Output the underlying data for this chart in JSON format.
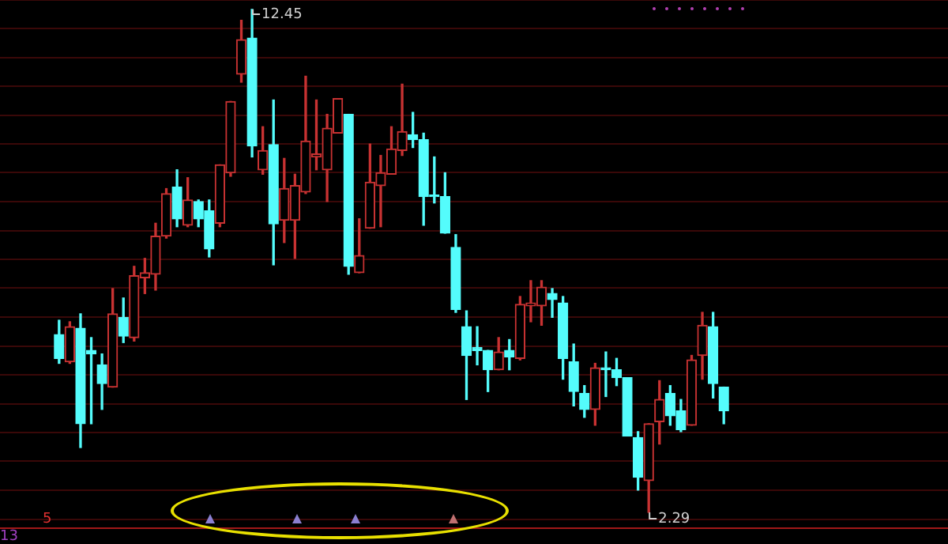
{
  "chart_data": {
    "type": "candlestick",
    "grid": true,
    "categories": [
      null,
      null,
      null,
      null,
      null,
      null,
      null,
      null,
      null,
      null,
      null,
      null,
      null,
      null,
      null,
      null,
      null,
      null,
      null,
      null,
      null,
      null,
      null,
      null,
      null,
      null,
      null,
      null,
      null,
      null,
      null,
      null,
      null,
      null,
      null,
      null,
      null,
      null,
      null,
      null,
      null,
      null,
      null,
      null,
      null,
      null,
      null,
      null,
      null,
      null,
      null,
      null,
      null,
      null,
      null,
      null,
      null,
      null,
      null,
      null,
      null,
      null,
      null
    ],
    "ohlc": [
      [
        5.88,
        6.17,
        5.3,
        5.4
      ],
      [
        5.33,
        6.14,
        5.3,
        6.04
      ],
      [
        6.01,
        6.3,
        3.6,
        4.08
      ],
      [
        5.56,
        5.82,
        4.08,
        5.49
      ],
      [
        5.27,
        5.49,
        4.37,
        4.89
      ],
      [
        4.82,
        6.81,
        4.82,
        6.3
      ],
      [
        6.23,
        6.62,
        5.72,
        5.85
      ],
      [
        5.82,
        7.26,
        5.75,
        7.07
      ],
      [
        7.03,
        7.42,
        6.71,
        7.13
      ],
      [
        7.1,
        8.13,
        6.78,
        7.87
      ],
      [
        7.87,
        8.83,
        7.83,
        8.73
      ],
      [
        8.86,
        9.21,
        8.06,
        8.22
      ],
      [
        8.09,
        9.05,
        8.06,
        8.6
      ],
      [
        8.57,
        8.6,
        8.06,
        8.22
      ],
      [
        8.38,
        8.6,
        7.45,
        7.61
      ],
      [
        8.13,
        9.31,
        8.06,
        9.31
      ],
      [
        9.15,
        10.59,
        9.08,
        10.59
      ],
      [
        11.14,
        12.23,
        10.98,
        11.84
      ],
      [
        11.87,
        12.45,
        9.47,
        9.69
      ],
      [
        9.21,
        10.08,
        9.12,
        9.6
      ],
      [
        9.72,
        10.62,
        7.29,
        8.12
      ],
      [
        8.19,
        9.44,
        7.74,
        8.83
      ],
      [
        8.19,
        9.12,
        7.42,
        8.89
      ],
      [
        8.76,
        11.1,
        8.73,
        9.79
      ],
      [
        9.47,
        10.62,
        9.21,
        9.53
      ],
      [
        9.21,
        10.33,
        8.57,
        10.05
      ],
      [
        9.95,
        10.65,
        9.95,
        10.65
      ],
      [
        10.33,
        10.33,
        7.1,
        7.26
      ],
      [
        7.13,
        8.22,
        7.13,
        7.48
      ],
      [
        8.03,
        9.73,
        8.03,
        8.96
      ],
      [
        8.89,
        9.5,
        8.06,
        9.15
      ],
      [
        9.12,
        10.08,
        9.12,
        9.63
      ],
      [
        9.6,
        10.94,
        9.5,
        9.98
      ],
      [
        9.92,
        10.37,
        9.66,
        9.82
      ],
      [
        9.82,
        9.95,
        8.09,
        8.67
      ],
      [
        8.7,
        9.47,
        8.54,
        8.67
      ],
      [
        8.67,
        9.15,
        7.93,
        7.93
      ],
      [
        7.64,
        7.9,
        6.33,
        6.39
      ],
      [
        6.04,
        6.36,
        4.57,
        5.46
      ],
      [
        5.62,
        6.04,
        5.27,
        5.56
      ],
      [
        5.56,
        5.56,
        4.73,
        5.17
      ],
      [
        5.17,
        5.82,
        5.17,
        5.53
      ],
      [
        5.56,
        5.78,
        5.17,
        5.43
      ],
      [
        5.4,
        6.65,
        5.37,
        6.49
      ],
      [
        6.46,
        6.97,
        6.14,
        6.52
      ],
      [
        6.46,
        6.97,
        6.07,
        6.84
      ],
      [
        6.71,
        6.81,
        6.23,
        6.59
      ],
      [
        6.52,
        6.65,
        4.98,
        5.4
      ],
      [
        5.33,
        5.69,
        4.44,
        4.73
      ],
      [
        4.69,
        4.85,
        4.21,
        4.37
      ],
      [
        4.37,
        5.3,
        4.05,
        5.21
      ],
      [
        5.21,
        5.53,
        4.63,
        5.17
      ],
      [
        5.17,
        5.4,
        4.85,
        5.01
      ],
      [
        5.01,
        5.01,
        3.83,
        3.83
      ],
      [
        3.8,
        3.92,
        2.74,
        3.0
      ],
      [
        2.93,
        4.08,
        2.29,
        4.08
      ],
      [
        4.12,
        4.95,
        3.67,
        4.57
      ],
      [
        4.69,
        4.85,
        4.05,
        4.24
      ],
      [
        4.34,
        4.57,
        3.92,
        3.96
      ],
      [
        4.05,
        5.46,
        4.05,
        5.37
      ],
      [
        5.46,
        6.33,
        4.98,
        6.07
      ],
      [
        6.04,
        6.33,
        4.6,
        4.89
      ],
      [
        4.82,
        4.82,
        4.08,
        4.34
      ]
    ],
    "colors": [
      "#54fcfc",
      "#c83232",
      "#54fcfc",
      "#54fcfc",
      "#54fcfc",
      "#c83232",
      "#54fcfc",
      "#c83232",
      "#c83232",
      "#c83232",
      "#c83232",
      "#54fcfc",
      "#c83232",
      "#54fcfc",
      "#54fcfc",
      "#c83232",
      "#c83232",
      "#c83232",
      "#54fcfc",
      "#c83232",
      "#54fcfc",
      "#c83232",
      "#c83232",
      "#c83232",
      "#c83232",
      "#c83232",
      "#c83232",
      "#54fcfc",
      "#c83232",
      "#c83232",
      "#c83232",
      "#c83232",
      "#c83232",
      "#54fcfc",
      "#54fcfc",
      "#54fcfc",
      "#54fcfc",
      "#54fcfc",
      "#54fcfc",
      "#54fcfc",
      "#54fcfc",
      "#c83232",
      "#54fcfc",
      "#c83232",
      "#c83232",
      "#c83232",
      "#54fcfc",
      "#54fcfc",
      "#54fcfc",
      "#54fcfc",
      "#c83232",
      "#54fcfc",
      "#54fcfc",
      "#54fcfc",
      "#54fcfc",
      "#c83232",
      "#c83232",
      "#54fcfc",
      "#54fcfc",
      "#c83232",
      "#c83232",
      "#54fcfc",
      "#54fcfc"
    ],
    "ylim": [
      1.97,
      12.64
    ],
    "yticks": [
      {
        "value": 12.64,
        "label": null
      },
      {
        "value": 12.07,
        "label": null
      },
      {
        "value": 11.48,
        "label": null
      },
      {
        "value": 10.9,
        "label": null
      },
      {
        "value": 10.31,
        "label": null
      },
      {
        "value": 9.73,
        "label": null
      },
      {
        "value": 9.15,
        "label": null
      },
      {
        "value": 8.57,
        "label": null
      },
      {
        "value": 7.98,
        "label": null
      },
      {
        "value": 7.4,
        "label": null
      },
      {
        "value": 6.82,
        "label": null
      },
      {
        "value": 6.23,
        "label": null
      },
      {
        "value": 5.65,
        "label": null
      },
      {
        "value": 5.07,
        "label": null
      },
      {
        "value": 4.48,
        "label": null
      },
      {
        "value": 3.9,
        "label": null
      },
      {
        "value": 3.32,
        "label": null
      },
      {
        "value": 2.73,
        "label": null
      },
      {
        "value": 2.15,
        "label": null
      }
    ],
    "tick_labels": false,
    "annotations": [
      "12.45",
      "2.29",
      "5",
      "13"
    ]
  }
}
